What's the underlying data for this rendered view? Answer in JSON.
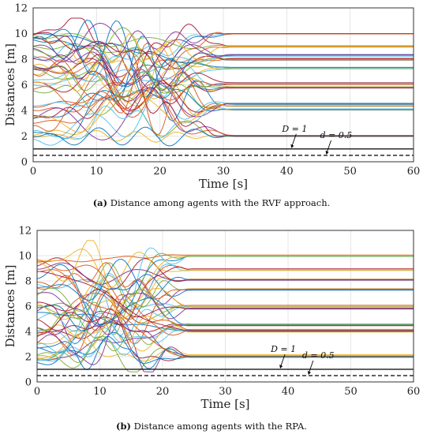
{
  "chart_data": [
    {
      "type": "line",
      "caption_tag": "(a)",
      "caption_text": "Distance among agents with the RVF approach.",
      "xlabel": "Time [s]",
      "ylabel": "Distances [m]",
      "xlim": [
        0,
        60
      ],
      "ylim": [
        0,
        12
      ],
      "xticks": [
        "0",
        "10",
        "20",
        "30",
        "40",
        "50",
        "60"
      ],
      "yticks": [
        "0",
        "2",
        "4",
        "6",
        "8",
        "10",
        "12"
      ],
      "grid": true,
      "settle_time": 32,
      "final_values": [
        10.0,
        9.0,
        8.3,
        8.0,
        7.3,
        6.1,
        5.8,
        4.5,
        4.3,
        4.1,
        2.0,
        2.0
      ],
      "annotations": [
        {
          "label": "D = 1",
          "value": 1.0,
          "x": 40,
          "style": "solid"
        },
        {
          "label": "d = 0.5",
          "value": 0.5,
          "x": 46,
          "style": "dashed"
        }
      ]
    },
    {
      "type": "line",
      "caption_tag": "(b)",
      "caption_text": "Distance among agents with the RPA.",
      "xlabel": "Time [s]",
      "ylabel": "Distances [m]",
      "xlim": [
        0,
        60
      ],
      "ylim": [
        0,
        12
      ],
      "xticks": [
        "0",
        "10",
        "20",
        "30",
        "40",
        "50",
        "60"
      ],
      "yticks": [
        "0",
        "2",
        "4",
        "6",
        "8",
        "10",
        "12"
      ],
      "grid": true,
      "settle_time": 25,
      "final_values": [
        10.0,
        8.9,
        8.1,
        7.3,
        6.0,
        5.8,
        4.5,
        4.1,
        4.0,
        2.1,
        2.0
      ],
      "annotations": [
        {
          "label": "D = 1",
          "value": 1.0,
          "x": 38,
          "style": "solid"
        },
        {
          "label": "d = 0.5",
          "value": 0.5,
          "x": 43,
          "style": "dashed"
        }
      ]
    }
  ],
  "colors": [
    "#0072bd",
    "#d95319",
    "#edb120",
    "#7e2f8e",
    "#77ac30",
    "#4dbeee",
    "#a2142f"
  ]
}
